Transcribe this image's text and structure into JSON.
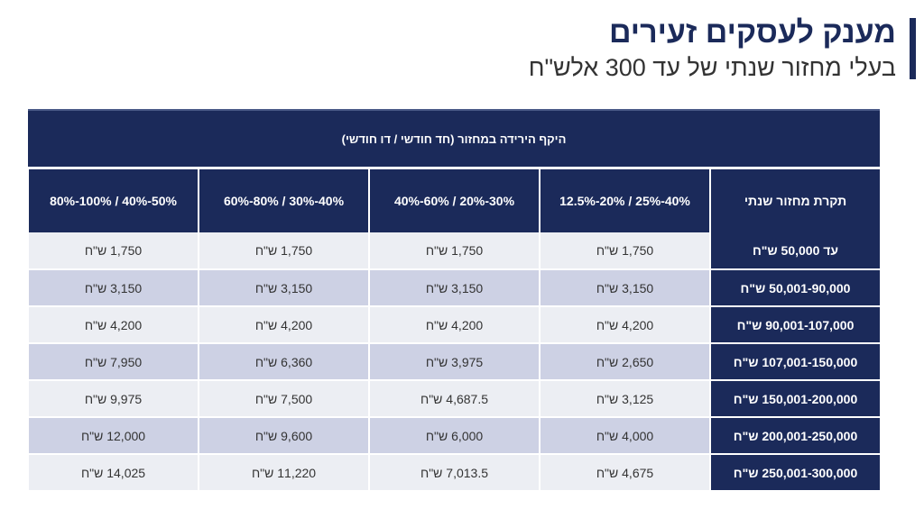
{
  "title": "מענק לעסקים זעירים",
  "subtitle": "בעלי מחזור שנתי של עד 300 אלש\"ח",
  "table": {
    "group_header": "היקף הירידה במחזור (חד חודשי / דו חודשי)",
    "row_header": "תקרת מחזור שנתי",
    "columns": [
      "12.5%-20% / 25%-40%",
      "40%-60% / 20%-30%",
      "60%-80% / 30%-40%",
      "80%-100% / 40%-50%"
    ],
    "rows": [
      {
        "label": "עד 50,000 ש\"ח",
        "values": [
          "1,750 ש\"ח",
          "1,750 ש\"ח",
          "1,750 ש\"ח",
          "1,750 ש\"ח"
        ]
      },
      {
        "label": "50,001-90,000 ש\"ח",
        "values": [
          "3,150 ש\"ח",
          "3,150 ש\"ח",
          "3,150 ש\"ח",
          "3,150 ש\"ח"
        ]
      },
      {
        "label": "90,001-107,000 ש\"ח",
        "values": [
          "4,200 ש\"ח",
          "4,200 ש\"ח",
          "4,200 ש\"ח",
          "4,200 ש\"ח"
        ]
      },
      {
        "label": "107,001-150,000 ש\"ח",
        "values": [
          "2,650 ש\"ח",
          "3,975 ש\"ח",
          "6,360 ש\"ח",
          "7,950 ש\"ח"
        ]
      },
      {
        "label": "150,001-200,000 ש\"ח",
        "values": [
          "3,125 ש\"ח",
          "4,687.5 ש\"ח",
          "7,500 ש\"ח",
          "9,975 ש\"ח"
        ]
      },
      {
        "label": "200,001-250,000 ש\"ח",
        "values": [
          "4,000 ש\"ח",
          "6,000 ש\"ח",
          "9,600 ש\"ח",
          "12,000 ש\"ח"
        ]
      },
      {
        "label": "250,001-300,000 ש\"ח",
        "values": [
          "4,675 ש\"ח",
          "7,013.5 ש\"ח",
          "11,220 ש\"ח",
          "14,025 ש\"ח"
        ]
      }
    ]
  },
  "colors": {
    "navy": "#1b2a5a",
    "row_light": "#eceef3",
    "row_dark": "#cdd1e4"
  }
}
